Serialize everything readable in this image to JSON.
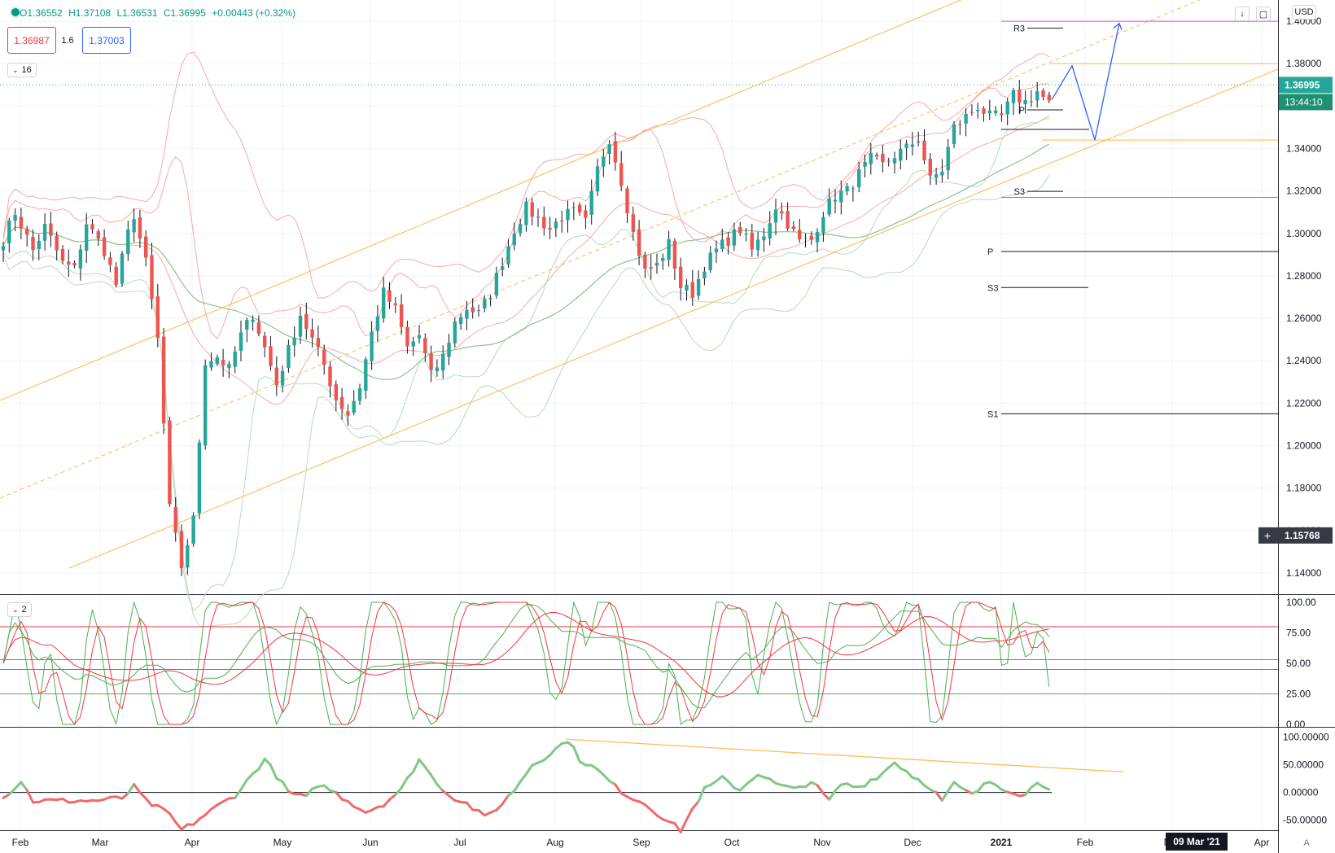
{
  "header": {
    "ohlc": {
      "o": "O1.36552",
      "h": "H1.37108",
      "l": "L1.36531",
      "c": "C1.36995",
      "change": "+0.00443 (+0.32%)"
    },
    "sell_price": "1.36987",
    "spread": "1.6",
    "buy_price": "1.37003",
    "currency": "USD",
    "main_pane_indicators": "16",
    "stoch_pane_indicators": "2",
    "auto_label": "A"
  },
  "colors": {
    "up_candle": "#26a69a",
    "down_candle": "#ef5350",
    "bollinger": "#f7a9a9",
    "envelope": "#b8dbb9",
    "ma_green": "#8bc58d",
    "channel": "#ffb74d",
    "pivot_magenta": "#e040fb",
    "projection": "#2962ff",
    "stoch_k": "#4caf50",
    "stoch_d": "#f23645",
    "osc_up": "#81c784",
    "osc_down": "#ef6b6b"
  },
  "chart_data": [
    {
      "type": "candlestick",
      "x_ticks": [
        "Feb",
        "Mar",
        "Apr",
        "May",
        "Jun",
        "Jul",
        "Aug",
        "Sep",
        "Oct",
        "Nov",
        "Dec",
        "2021",
        "Feb",
        "Mar",
        "Apr"
      ],
      "x_crosshair_label": "09 Mar '21",
      "y_ticks": [
        "1.40000",
        "1.38000",
        "1.36000",
        "1.34000",
        "1.32000",
        "1.30000",
        "1.28000",
        "1.26000",
        "1.24000",
        "1.22000",
        "1.20000",
        "1.18000",
        "1.16000",
        "1.14000"
      ],
      "ylim": [
        1.13,
        1.41
      ],
      "last_price": "1.36995",
      "countdown": "13:44:10",
      "crosshair_price": "1.15768",
      "anchors": [
        [
          0,
          1.297
        ],
        [
          2,
          1.31
        ],
        [
          5,
          1.292
        ],
        [
          7,
          1.303
        ],
        [
          10,
          1.286
        ],
        [
          12,
          1.283
        ],
        [
          14,
          1.305
        ],
        [
          17,
          1.292
        ],
        [
          19,
          1.276
        ],
        [
          21,
          1.3
        ],
        [
          22,
          1.309
        ],
        [
          24,
          1.286
        ],
        [
          26,
          1.25
        ],
        [
          28,
          1.17
        ],
        [
          30,
          1.143
        ],
        [
          32,
          1.165
        ],
        [
          34,
          1.24
        ],
        [
          36,
          1.242
        ],
        [
          38,
          1.236
        ],
        [
          40,
          1.252
        ],
        [
          42,
          1.262
        ],
        [
          44,
          1.246
        ],
        [
          46,
          1.229
        ],
        [
          48,
          1.245
        ],
        [
          50,
          1.262
        ],
        [
          52,
          1.25
        ],
        [
          54,
          1.238
        ],
        [
          56,
          1.222
        ],
        [
          58,
          1.215
        ],
        [
          60,
          1.228
        ],
        [
          62,
          1.253
        ],
        [
          64,
          1.272
        ],
        [
          66,
          1.264
        ],
        [
          68,
          1.246
        ],
        [
          70,
          1.252
        ],
        [
          72,
          1.233
        ],
        [
          74,
          1.242
        ],
        [
          76,
          1.258
        ],
        [
          78,
          1.265
        ],
        [
          80,
          1.262
        ],
        [
          82,
          1.272
        ],
        [
          84,
          1.287
        ],
        [
          86,
          1.302
        ],
        [
          88,
          1.312
        ],
        [
          90,
          1.307
        ],
        [
          92,
          1.302
        ],
        [
          94,
          1.308
        ],
        [
          96,
          1.31
        ],
        [
          98,
          1.305
        ],
        [
          100,
          1.33
        ],
        [
          102,
          1.345
        ],
        [
          104,
          1.325
        ],
        [
          106,
          1.3
        ],
        [
          108,
          1.282
        ],
        [
          110,
          1.285
        ],
        [
          112,
          1.295
        ],
        [
          114,
          1.275
        ],
        [
          116,
          1.272
        ],
        [
          118,
          1.285
        ],
        [
          120,
          1.292
        ],
        [
          122,
          1.297
        ],
        [
          124,
          1.302
        ],
        [
          126,
          1.292
        ],
        [
          128,
          1.3
        ],
        [
          130,
          1.313
        ],
        [
          132,
          1.305
        ],
        [
          134,
          1.296
        ],
        [
          136,
          1.297
        ],
        [
          138,
          1.31
        ],
        [
          140,
          1.318
        ],
        [
          142,
          1.32
        ],
        [
          144,
          1.328
        ],
        [
          146,
          1.335
        ],
        [
          148,
          1.332
        ],
        [
          150,
          1.337
        ],
        [
          152,
          1.34
        ],
        [
          154,
          1.345
        ],
        [
          156,
          1.325
        ],
        [
          158,
          1.33
        ],
        [
          160,
          1.35
        ],
        [
          162,
          1.355
        ],
        [
          164,
          1.36
        ],
        [
          166,
          1.355
        ],
        [
          168,
          1.355
        ],
        [
          170,
          1.365
        ],
        [
          172,
          1.362
        ],
        [
          174,
          1.367
        ],
        [
          176,
          1.361
        ]
      ]
    },
    {
      "type": "line",
      "name": "stochastic",
      "y_ticks": [
        "100.00",
        "75.00",
        "50.00",
        "25.00",
        "0.00"
      ],
      "ylim": [
        0,
        100
      ],
      "levels": [
        80,
        53,
        45,
        25
      ]
    },
    {
      "type": "line",
      "name": "oscillator",
      "y_ticks": [
        "100.00000",
        "50.00000",
        "0.00000",
        "-50.00000"
      ],
      "ylim": [
        -68,
        108
      ],
      "anchors": [
        [
          0,
          -10
        ],
        [
          3,
          20
        ],
        [
          5,
          -15
        ],
        [
          10,
          -15
        ],
        [
          15,
          -15
        ],
        [
          20,
          -10
        ],
        [
          22,
          10
        ],
        [
          24,
          -15
        ],
        [
          28,
          -40
        ],
        [
          30,
          -68
        ],
        [
          32,
          -55
        ],
        [
          36,
          -25
        ],
        [
          39,
          -5
        ],
        [
          41,
          20
        ],
        [
          44,
          60
        ],
        [
          46,
          30
        ],
        [
          48,
          0
        ],
        [
          51,
          -10
        ],
        [
          53,
          15
        ],
        [
          55,
          5
        ],
        [
          58,
          -15
        ],
        [
          61,
          -35
        ],
        [
          64,
          -20
        ],
        [
          67,
          5
        ],
        [
          70,
          60
        ],
        [
          72,
          30
        ],
        [
          75,
          -5
        ],
        [
          78,
          -20
        ],
        [
          81,
          -45
        ],
        [
          84,
          -20
        ],
        [
          86,
          5
        ],
        [
          89,
          50
        ],
        [
          92,
          70
        ],
        [
          95,
          95
        ],
        [
          97,
          60
        ],
        [
          100,
          40
        ],
        [
          103,
          10
        ],
        [
          105,
          -5
        ],
        [
          108,
          -20
        ],
        [
          111,
          -45
        ],
        [
          114,
          -68
        ],
        [
          116,
          -30
        ],
        [
          118,
          5
        ],
        [
          121,
          25
        ],
        [
          124,
          5
        ],
        [
          127,
          35
        ],
        [
          130,
          15
        ],
        [
          133,
          5
        ],
        [
          136,
          20
        ],
        [
          139,
          -15
        ],
        [
          141,
          15
        ],
        [
          144,
          10
        ],
        [
          148,
          35
        ],
        [
          150,
          55
        ],
        [
          153,
          30
        ],
        [
          156,
          10
        ],
        [
          158,
          -15
        ],
        [
          160,
          15
        ],
        [
          163,
          -5
        ],
        [
          166,
          20
        ],
        [
          169,
          5
        ],
        [
          172,
          -5
        ],
        [
          174,
          20
        ],
        [
          176,
          10
        ]
      ]
    }
  ],
  "annotations": {
    "pivots": [
      {
        "label": "R3",
        "price": 1.3967
      },
      {
        "label": "P",
        "price": 1.3582
      },
      {
        "label": "S3",
        "price": 1.3198
      },
      {
        "label": "P",
        "price": 1.2915
      },
      {
        "label": "S3",
        "price": 1.2745
      },
      {
        "label": "S1",
        "price": 1.215
      }
    ],
    "levels": [
      1.4,
      1.38,
      1.344,
      1.317
    ]
  }
}
